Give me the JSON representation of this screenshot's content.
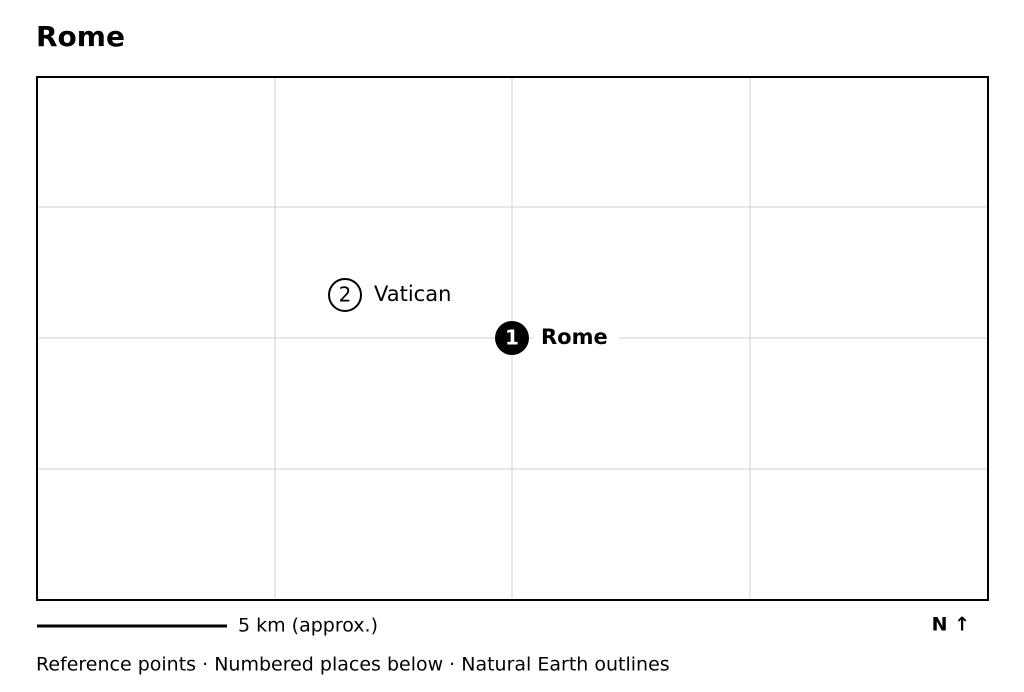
{
  "title": "Rome",
  "places": [
    {
      "number": "1",
      "name": "Rome"
    },
    {
      "number": "2",
      "name": "Vatican"
    }
  ],
  "scale_label": "5 km (approx.)",
  "north_label": "N ↑",
  "footer": "Reference points · Numbered places below · Natural Earth outlines"
}
